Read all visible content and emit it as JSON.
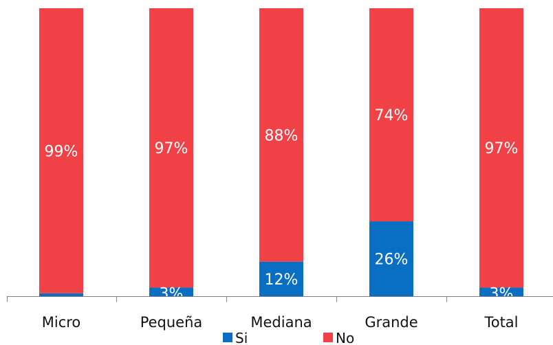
{
  "chart_data": {
    "type": "bar",
    "stacked": true,
    "normalized": true,
    "categories": [
      "Micro",
      "Pequeña",
      "Mediana",
      "Grande",
      "Total"
    ],
    "series": [
      {
        "name": "Si",
        "color": "#0a6fc2",
        "values": [
          1,
          3,
          12,
          26,
          3
        ],
        "labels": [
          "",
          "3%",
          "12%",
          "26%",
          "3%"
        ]
      },
      {
        "name": "No",
        "color": "#ef4146",
        "values": [
          99,
          97,
          88,
          74,
          97
        ],
        "labels": [
          "99%",
          "97%",
          "88%",
          "74%",
          "97%"
        ]
      }
    ],
    "ylim": [
      0,
      100
    ],
    "grid": false,
    "legend": "bottom"
  }
}
